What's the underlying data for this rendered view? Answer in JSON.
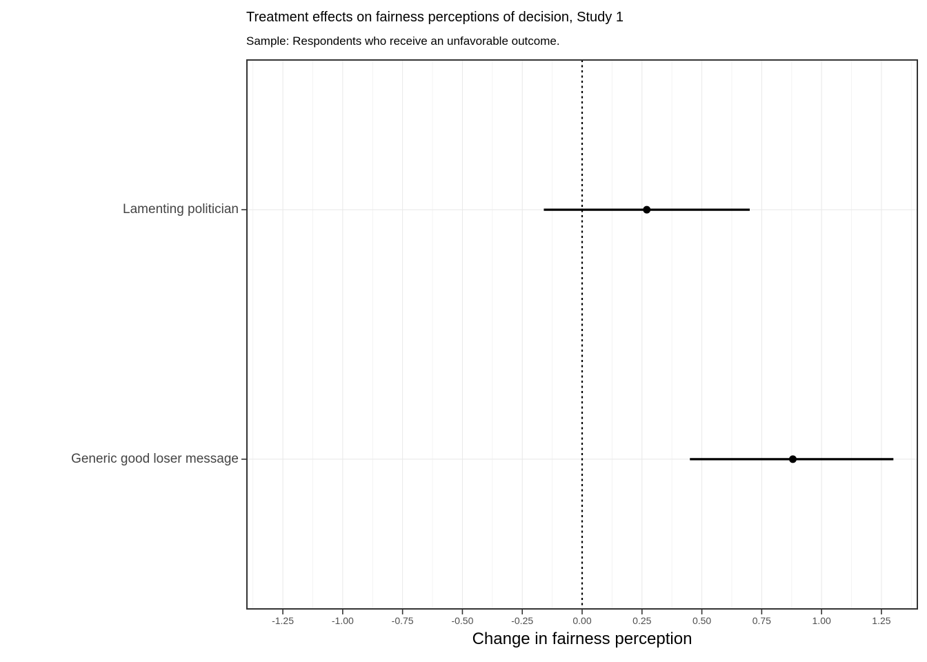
{
  "figure": {
    "title": "Treatment effects on fairness perceptions of decision, Study 1",
    "subtitle": "Sample: Respondents who receive an unfavorable outcome."
  },
  "chart_data": {
    "type": "scatter",
    "variant": "coefficient-dot-whisker",
    "orientation": "horizontal",
    "title": "Treatment effects on fairness perceptions of decision, Study 1",
    "subtitle": "Sample: Respondents who receive an unfavorable outcome.",
    "xlabel": "Change in fairness perception",
    "ylabel": "",
    "categories": [
      "Lamenting politician",
      "Generic good loser message"
    ],
    "points": [
      {
        "category": "Lamenting politician",
        "estimate": 0.27,
        "ci_low": -0.16,
        "ci_high": 0.7
      },
      {
        "category": "Generic good loser message",
        "estimate": 0.88,
        "ci_low": 0.45,
        "ci_high": 1.3
      }
    ],
    "xlim": [
      -1.4,
      1.4
    ],
    "x_ticks": [
      -1.25,
      -1.0,
      -0.75,
      -0.5,
      -0.25,
      0.0,
      0.25,
      0.5,
      0.75,
      1.0,
      1.25
    ],
    "x_tick_labels": [
      "-1.25",
      "-1.00",
      "-0.75",
      "-0.50",
      "-0.25",
      "0.00",
      "0.25",
      "0.50",
      "0.75",
      "1.00",
      "1.25"
    ],
    "x_minor_ticks": [
      -1.375,
      -1.125,
      -0.875,
      -0.625,
      -0.375,
      -0.125,
      0.125,
      0.375,
      0.625,
      0.875,
      1.125,
      1.375
    ],
    "reference_line": {
      "x": 0,
      "style": "dotted",
      "color": "#000000"
    },
    "grid": {
      "major": true,
      "minor": true,
      "legend_position": "none"
    },
    "colors": {
      "point": "#000000",
      "ci_line": "#000000",
      "panel_border": "#333333",
      "major_grid": "#e8e8e8",
      "minor_grid": "#f3f3f3",
      "axis_text": "#4d4d4d",
      "tick_mark": "#333333",
      "background": "#ffffff"
    }
  }
}
